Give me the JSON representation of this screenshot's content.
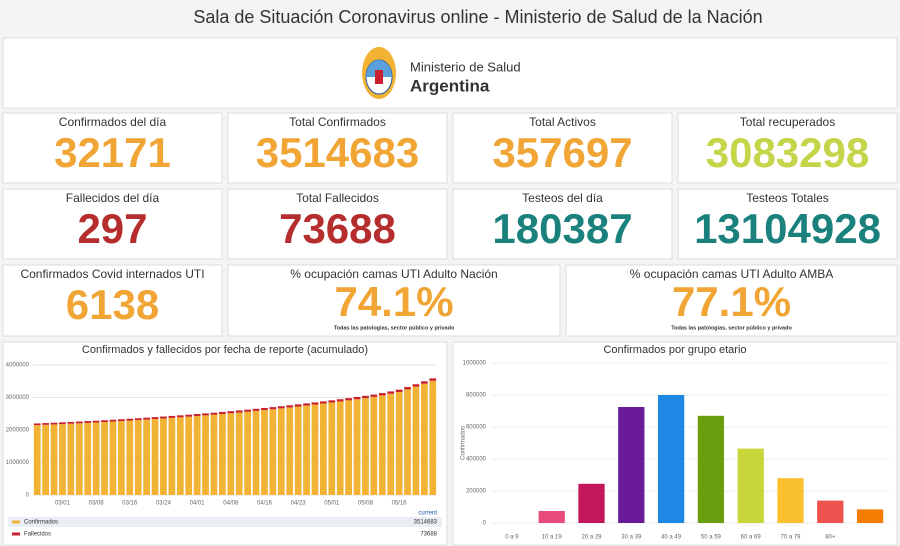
{
  "header": {
    "title": "Sala de Situación Coronavirus online - Ministerio de Salud de la Nación"
  },
  "logo": {
    "line1": "Ministerio de Salud",
    "line2": "Argentina"
  },
  "cards": [
    {
      "label": "Confirmados del día",
      "value": 32171,
      "color": "#f0a535"
    },
    {
      "label": "Total Confirmados",
      "value": 3514683,
      "color": "#f0a535"
    },
    {
      "label": "Total Activos",
      "value": 357697,
      "color": "#f0a535"
    },
    {
      "label": "Total recuperados",
      "value": 3083298,
      "color": "#c5d54a"
    },
    {
      "label": "Fallecidos del día",
      "value": 297,
      "color": "#b52d2d"
    },
    {
      "label": "Total Fallecidos",
      "value": 73688,
      "color": "#b52d2d"
    },
    {
      "label": "Testeos del día",
      "value": 180387,
      "color": "#1b817d"
    },
    {
      "label": "Testeos Totales",
      "value": 13104928,
      "color": "#1b817d"
    },
    {
      "label": "Confirmados Covid internados UTI",
      "value": 6138,
      "color": "#f0a535"
    },
    {
      "label": "% ocupación camas UTI Adulto Nación",
      "value": "74.1%",
      "color": "#f0a535",
      "note": "Todas las patologías, sector público y privado"
    },
    {
      "label": "% ocupación camas UTI Adulto AMBA",
      "value": "77.1%",
      "color": "#f0a535",
      "note": "Todas las patologías, sector público y privado"
    }
  ],
  "chart_data": [
    {
      "type": "stacked_bar",
      "title": "Confirmados y fallecidos por fecha de reporte (acumulado)",
      "categories": [
        null,
        null,
        null,
        "03/01",
        null,
        null,
        null,
        "03/08",
        null,
        null,
        null,
        "03/16",
        null,
        null,
        null,
        "03/24",
        null,
        null,
        null,
        "04/01",
        null,
        null,
        null,
        "04/08",
        null,
        null,
        null,
        "04/16",
        null,
        null,
        null,
        "04/23",
        null,
        null,
        null,
        "05/01",
        null,
        null,
        null,
        "05/08",
        null,
        null,
        null,
        "05/16",
        null,
        null,
        null,
        null
      ],
      "series": [
        {
          "name": "Confirmados",
          "color": "#f2b233",
          "values": [
            2150000,
            2160000,
            2171000,
            2182000,
            2194000,
            2206000,
            2218000,
            2231000,
            2245000,
            2259000,
            2274000,
            2289000,
            2305000,
            2321000,
            2338000,
            2355000,
            2373000,
            2391000,
            2410000,
            2430000,
            2450000,
            2471000,
            2493000,
            2516000,
            2539000,
            2563000,
            2588000,
            2613000,
            2639000,
            2666000,
            2694000,
            2723000,
            2752000,
            2782000,
            2813000,
            2845000,
            2878000,
            2912000,
            2947000,
            2983000,
            3020000,
            3065000,
            3115000,
            3170000,
            3250000,
            3335000,
            3425000,
            3514683
          ]
        },
        {
          "name": "Fallecidos",
          "color": "#c8202f",
          "values": [
            52000,
            52500,
            52900,
            53400,
            53800,
            54300,
            54800,
            55200,
            55700,
            56100,
            56600,
            57100,
            57500,
            58000,
            58400,
            58900,
            59400,
            59800,
            60300,
            60700,
            61200,
            61700,
            62100,
            62600,
            63000,
            63500,
            64000,
            64400,
            64900,
            65300,
            65800,
            66300,
            66700,
            67200,
            67600,
            68100,
            68600,
            69000,
            69500,
            69900,
            70400,
            70900,
            71300,
            71800,
            72200,
            72700,
            73200,
            73688
          ]
        }
      ],
      "ylim": [
        0,
        4000000
      ],
      "yticks": [
        0,
        1000000,
        2000000,
        3000000,
        4000000
      ],
      "grid": true,
      "legend_header": "current"
    },
    {
      "type": "bar",
      "title": "Confirmados por grupo etario",
      "ylabel": "Confirmados",
      "categories": [
        "0 a 9",
        "10 a 19",
        "20 a 29",
        "30 a 39",
        "40 a 49",
        "50 a 59",
        "60 a 69",
        "70 a 79",
        "80+",
        null
      ],
      "values": [
        0,
        75000,
        245000,
        725000,
        800000,
        670000,
        465000,
        280000,
        140000,
        85000
      ],
      "colors": [
        "#e84a7a",
        "#e84a7a",
        "#c2185b",
        "#6a1b9a",
        "#1e88e5",
        "#6b9e0e",
        "#c9d63a",
        "#fbc02d",
        "#ef5350",
        "#f57c00"
      ],
      "ylim": [
        0,
        1000000
      ],
      "yticks": [
        0,
        200000,
        400000,
        600000,
        800000,
        1000000
      ],
      "grid": true
    }
  ]
}
